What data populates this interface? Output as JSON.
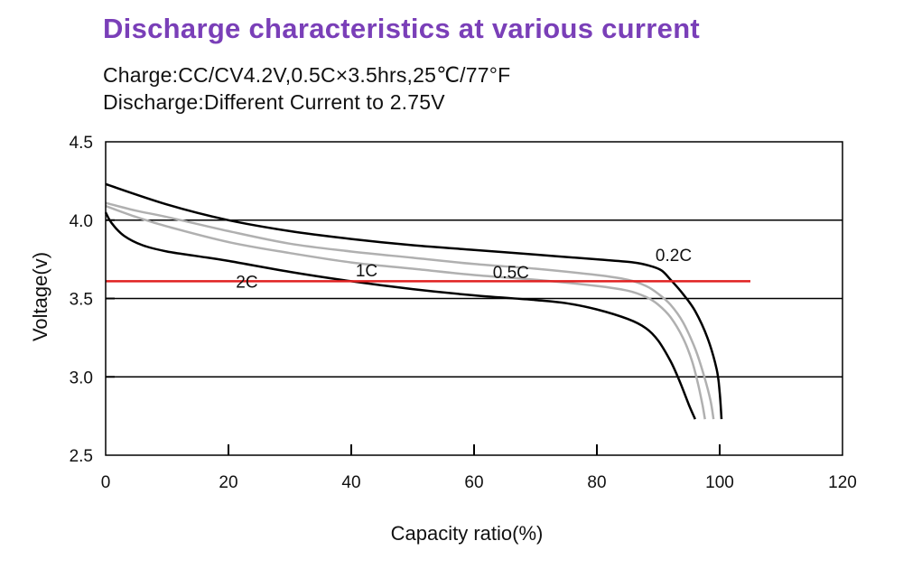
{
  "header": {
    "title": "Discharge characteristics at various current",
    "subtitle_line1": "Charge:CC/CV4.2V,0.5C×3.5hrs,25℃/77°F",
    "subtitle_line2": "Discharge:Different Current to 2.75V"
  },
  "colors": {
    "title": "#7a3fb8",
    "rate_curves_black": "#000000",
    "rate_curves_gray": "#b0b0b0",
    "reference_line": "#e02020"
  },
  "chart_data": {
    "type": "line",
    "xlabel": "Capacity  ratio(%)",
    "ylabel": "Voltage(v)",
    "xlim": [
      0,
      120
    ],
    "ylim": [
      2.5,
      4.5
    ],
    "xticks": [
      "0",
      "20",
      "40",
      "60",
      "80",
      "100",
      "120"
    ],
    "yticks": [
      "2.5",
      "3.0",
      "3.5",
      "4.0",
      "4.5"
    ],
    "horizontal_gridlines": [
      3.0,
      3.5,
      4.0
    ],
    "reference_line": {
      "y": 3.61,
      "x_start": 0,
      "x_end": 105
    },
    "series": [
      {
        "name": "0.2C",
        "color": "black",
        "label": "0.2C",
        "label_at": [
          92.5,
          3.74
        ],
        "x": [
          0,
          10,
          20,
          30,
          40,
          50,
          60,
          70,
          80,
          86,
          88.5,
          90.5,
          92,
          94,
          96,
          98,
          99.5,
          100,
          100.3
        ],
        "y": [
          4.23,
          4.1,
          4.0,
          3.93,
          3.88,
          3.84,
          3.81,
          3.78,
          3.75,
          3.73,
          3.71,
          3.68,
          3.62,
          3.53,
          3.42,
          3.25,
          3.05,
          2.9,
          2.73
        ]
      },
      {
        "name": "0.5C",
        "color": "gray",
        "label": "0.5C",
        "label_at": [
          66,
          3.63
        ],
        "x": [
          0,
          5,
          10,
          20,
          30,
          40,
          50,
          60,
          70,
          80,
          85,
          88,
          90,
          92,
          94,
          96,
          97.5,
          98.5,
          99
        ],
        "y": [
          4.11,
          4.06,
          4.02,
          3.93,
          3.85,
          3.8,
          3.76,
          3.72,
          3.69,
          3.65,
          3.62,
          3.58,
          3.53,
          3.46,
          3.35,
          3.18,
          3.0,
          2.85,
          2.73
        ]
      },
      {
        "name": "1C",
        "color": "gray",
        "label": "1C",
        "label_at": [
          42.5,
          3.64
        ],
        "x": [
          0,
          5,
          10,
          20,
          30,
          40,
          50,
          60,
          70,
          80,
          85,
          88,
          90,
          92,
          94,
          95.5,
          96.5,
          97.2,
          97.6
        ],
        "y": [
          4.09,
          4.02,
          3.96,
          3.86,
          3.79,
          3.73,
          3.69,
          3.65,
          3.62,
          3.58,
          3.55,
          3.51,
          3.46,
          3.38,
          3.25,
          3.1,
          2.95,
          2.82,
          2.73
        ]
      },
      {
        "name": "2C",
        "color": "black",
        "label": "2C",
        "label_at": [
          23,
          3.57
        ],
        "x": [
          0,
          1,
          3,
          6,
          10,
          15,
          20,
          30,
          40,
          50,
          60,
          70,
          75,
          80,
          85,
          88,
          90,
          92,
          93.5,
          95,
          96
        ],
        "y": [
          4.05,
          3.98,
          3.9,
          3.84,
          3.8,
          3.77,
          3.74,
          3.67,
          3.61,
          3.56,
          3.52,
          3.49,
          3.47,
          3.43,
          3.37,
          3.31,
          3.23,
          3.1,
          2.97,
          2.82,
          2.73
        ]
      }
    ]
  }
}
